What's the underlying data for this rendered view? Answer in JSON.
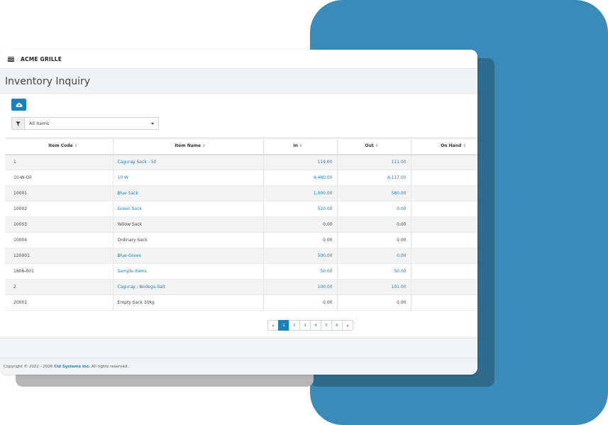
{
  "app": {
    "brand": "ACME GRILLE"
  },
  "page": {
    "title": "Inventory Inquiry"
  },
  "filter": {
    "selected": "All Items"
  },
  "table": {
    "headers": {
      "code": "Item Code",
      "name": "Item Name",
      "in": "In",
      "out": "Out",
      "on_hand": "On Hand",
      "sort_glyph": "⇕"
    },
    "rows": [
      {
        "code": "1",
        "name": "Caguray Sack - 50",
        "in": "119.00",
        "out": "111.00",
        "on_hand": "",
        "linked": true
      },
      {
        "code": "10-W-Oil",
        "name": "10 W",
        "in": "4,480.00",
        "out": "4,117.00",
        "on_hand": "",
        "linked": true
      },
      {
        "code": "10001",
        "name": "Blue Sack",
        "in": "1,000.00",
        "out": "580.00",
        "on_hand": "",
        "linked": true
      },
      {
        "code": "10002",
        "name": "Green Sack",
        "in": "520.00",
        "out": "0.00",
        "on_hand": "",
        "linked": true
      },
      {
        "code": "10003",
        "name": "Yellow Sack",
        "in": "0.00",
        "out": "0.00",
        "on_hand": "",
        "linked": false
      },
      {
        "code": "10004",
        "name": "Ordinary Sack",
        "in": "0.00",
        "out": "0.00",
        "on_hand": "",
        "linked": false
      },
      {
        "code": "120001",
        "name": "Blue-Green",
        "in": "500.00",
        "out": "0.00",
        "on_hand": "",
        "linked": true
      },
      {
        "code": "1806-001",
        "name": "Sample Items",
        "in": "50.00",
        "out": "50.00",
        "on_hand": "",
        "linked": true
      },
      {
        "code": "2",
        "name": "Caguray - Bodega Salt",
        "in": "100.00",
        "out": "101.00",
        "on_hand": "",
        "linked": true
      },
      {
        "code": "20001",
        "name": "Empty Sack 30kg",
        "in": "0.00",
        "out": "0.00",
        "on_hand": "",
        "linked": false
      }
    ]
  },
  "pagination": {
    "prev": "‹",
    "next": "›",
    "pages": [
      "1",
      "2",
      "3",
      "4",
      "5",
      "6"
    ],
    "current": "1"
  },
  "footer": {
    "prefix": "Copyright © 2022 - 2026 ",
    "company": "Cid Systems Inc.",
    "suffix": " All rights reserved."
  },
  "colors": {
    "accent": "#1a82b8",
    "backdrop_blue": "#3a8bb8",
    "backdrop_dark": "#2d6a8c"
  },
  "icons": {
    "menu": "hamburger-icon",
    "upload": "cloud-upload-icon",
    "filter": "filter-icon",
    "dropdown": "caret-down-icon"
  }
}
